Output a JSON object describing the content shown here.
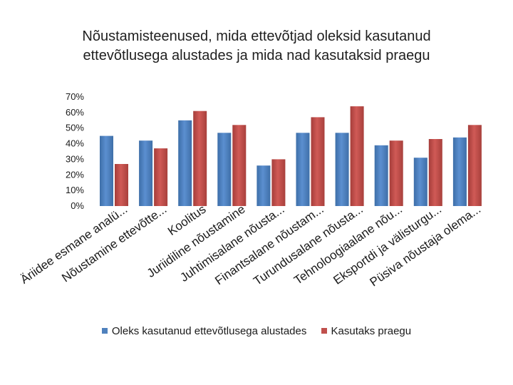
{
  "chart_data": {
    "type": "bar",
    "title_lines": [
      "Nõustamisteenused, mida ettevõtjad oleksid kasutanud",
      "ettevõtlusega alustades ja mida nad kasutaksid praegu"
    ],
    "categories": [
      "Äriidee esmane analü...",
      "Nõustamine ettevõtte...",
      "Koolitus",
      "Juriidiline nõustamine",
      "Juhtimisalane nõusta...",
      "Finantsalane nõustam...",
      "Turundusalane nõusta...",
      "Tehnoloogiaalane nõu...",
      "Eksportdi ja välisturgu...",
      "Püsiva nõustaja olema..."
    ],
    "series": [
      {
        "name": "Oleks kasutanud ettevõtlusega alustades",
        "color": "#4f81bd",
        "values": [
          45,
          42,
          55,
          47,
          26,
          47,
          47,
          39,
          31,
          44
        ]
      },
      {
        "name": "Kasutaks praegu",
        "color": "#c0504d",
        "values": [
          27,
          37,
          61,
          52,
          30,
          57,
          64,
          42,
          43,
          52
        ]
      }
    ],
    "yticks": [
      "70%",
      "60%",
      "50%",
      "40%",
      "30%",
      "20%",
      "10%",
      "0%"
    ],
    "ylim": [
      0,
      70
    ],
    "xlabel": "",
    "ylabel": "",
    "legend_position": "bottom"
  }
}
